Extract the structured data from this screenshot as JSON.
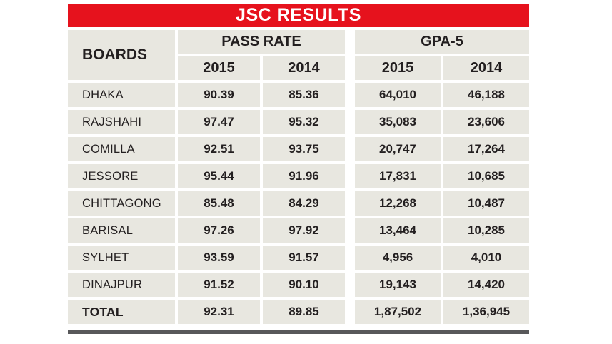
{
  "title": "JSC RESULTS",
  "colors": {
    "title_bg": "#e6121d",
    "title_text": "#ffffff",
    "cell_bg": "#e8e7e0",
    "text": "#231f20",
    "bottom_bar": "#58585a"
  },
  "chart_data": {
    "type": "table",
    "title": "JSC RESULTS",
    "header": {
      "boards": "BOARDS",
      "groups": [
        {
          "label": "PASS RATE",
          "years": [
            "2015",
            "2014"
          ]
        },
        {
          "label": "GPA-5",
          "years": [
            "2015",
            "2014"
          ]
        }
      ]
    },
    "rows": [
      [
        "DHAKA",
        "90.39",
        "85.36",
        "64,010",
        "46,188"
      ],
      [
        "RAJSHAHI",
        "97.47",
        "95.32",
        "35,083",
        "23,606"
      ],
      [
        "COMILLA",
        "92.51",
        "93.75",
        "20,747",
        "17,264"
      ],
      [
        "JESSORE",
        "95.44",
        "91.96",
        "17,831",
        "10,685"
      ],
      [
        "CHITTAGONG",
        "85.48",
        "84.29",
        "12,268",
        "10,487"
      ],
      [
        "BARISAL",
        "97.26",
        "97.92",
        "13,464",
        "10,285"
      ],
      [
        "SYLHET",
        "93.59",
        "91.57",
        "4,956",
        "4,010"
      ],
      [
        "DINAJPUR",
        "91.52",
        "90.10",
        "19,143",
        "14,420"
      ],
      [
        "TOTAL",
        "92.31",
        "89.85",
        "1,87,502",
        "1,36,945"
      ]
    ]
  }
}
